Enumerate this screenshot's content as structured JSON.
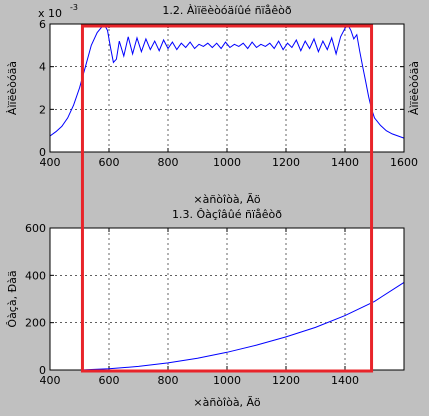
{
  "chart_data": [
    {
      "type": "line",
      "title": "1.2. Àìïëèòóäíûé ñïåêòð",
      "xlabel": "×àñòîòà, Ãö",
      "ylabel": "Àìïëèòóäà",
      "ylabel_right": "Àìïëèòóäà",
      "exponent_label": "x 10",
      "exponent_power": "-3",
      "xlim": [
        400,
        1600
      ],
      "ylim": [
        0,
        6
      ],
      "x_ticks": [
        "400",
        "600",
        "800",
        "1000",
        "1200",
        "1400",
        "1600"
      ],
      "y_ticks": [
        "0",
        "2",
        "4",
        "6"
      ],
      "grid": true,
      "series": [
        {
          "color": "#0000ff",
          "x": [
            400,
            420,
            440,
            460,
            480,
            500,
            520,
            540,
            560,
            575,
            585,
            595,
            605,
            615,
            625,
            635,
            650,
            665,
            680,
            695,
            710,
            725,
            740,
            755,
            770,
            785,
            800,
            815,
            830,
            845,
            860,
            875,
            890,
            905,
            920,
            935,
            950,
            965,
            980,
            995,
            1010,
            1025,
            1040,
            1055,
            1070,
            1085,
            1100,
            1115,
            1130,
            1145,
            1160,
            1175,
            1190,
            1205,
            1220,
            1235,
            1250,
            1265,
            1280,
            1295,
            1310,
            1325,
            1340,
            1355,
            1370,
            1385,
            1400,
            1410,
            1420,
            1430,
            1440,
            1450,
            1460,
            1470,
            1480,
            1490,
            1500,
            1520,
            1540,
            1560,
            1580,
            1600
          ],
          "y": [
            0.75,
            0.95,
            1.2,
            1.6,
            2.2,
            3.0,
            4.0,
            5.0,
            5.6,
            5.85,
            5.95,
            5.7,
            4.9,
            4.2,
            4.35,
            5.2,
            4.5,
            5.4,
            4.6,
            5.35,
            4.7,
            5.3,
            4.8,
            5.2,
            4.75,
            5.25,
            4.85,
            5.15,
            4.8,
            5.1,
            4.9,
            5.15,
            4.85,
            5.05,
            4.95,
            5.1,
            4.9,
            5.1,
            4.85,
            5.15,
            4.9,
            5.05,
            4.95,
            5.1,
            4.85,
            5.15,
            4.9,
            5.05,
            4.95,
            5.1,
            4.85,
            5.2,
            4.8,
            5.1,
            4.9,
            5.25,
            4.75,
            5.2,
            4.85,
            5.3,
            4.7,
            5.2,
            4.8,
            5.35,
            4.6,
            5.4,
            5.8,
            5.95,
            5.7,
            5.3,
            5.5,
            4.7,
            4.0,
            3.3,
            2.6,
            2.0,
            1.6,
            1.25,
            1.0,
            0.85,
            0.75,
            0.65
          ]
        }
      ]
    },
    {
      "type": "line",
      "title": "1.3. Ôàçîâûé ñïåêòð",
      "xlabel": "×àñòîòà, Ãö",
      "ylabel": "Ôàçà, Ðàä",
      "xlim": [
        400,
        1600
      ],
      "ylim": [
        0,
        600
      ],
      "x_ticks": [
        "400",
        "600",
        "800",
        "1000",
        "1200",
        "1400"
      ],
      "y_ticks": [
        "0",
        "200",
        "400",
        "600"
      ],
      "grid": true,
      "series": [
        {
          "color": "#0000ff",
          "x": [
            400,
            500,
            600,
            700,
            800,
            900,
            1000,
            1100,
            1200,
            1300,
            1400,
            1500,
            1600
          ],
          "y": [
            0,
            0,
            5,
            15,
            30,
            50,
            75,
            105,
            140,
            180,
            230,
            290,
            370
          ]
        }
      ]
    }
  ],
  "overlay": {
    "color": "#e8242a"
  }
}
